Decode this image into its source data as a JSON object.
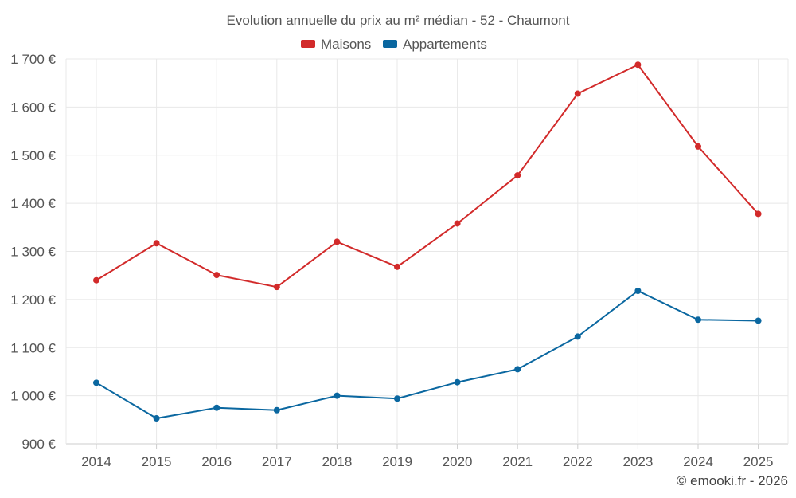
{
  "chart_data": {
    "type": "line",
    "title": "Evolution annuelle du prix au m² médian - 52 - Chaumont",
    "categories": [
      "2014",
      "2015",
      "2016",
      "2017",
      "2018",
      "2019",
      "2020",
      "2021",
      "2022",
      "2023",
      "2024",
      "2025"
    ],
    "series": [
      {
        "name": "Maisons",
        "color": "#d22a2a",
        "values": [
          1240,
          1317,
          1251,
          1226,
          1320,
          1268,
          1358,
          1458,
          1628,
          1688,
          1518,
          1378
        ]
      },
      {
        "name": "Appartements",
        "color": "#0a67a0",
        "values": [
          1027,
          953,
          975,
          970,
          1000,
          994,
          1028,
          1055,
          1123,
          1218,
          1158,
          1156
        ]
      }
    ],
    "ylim": [
      900,
      1700
    ],
    "yticks": [
      900,
      1000,
      1100,
      1200,
      1300,
      1400,
      1500,
      1600,
      1700
    ],
    "ytick_labels": [
      "900 €",
      "1 000 €",
      "1 100 €",
      "1 200 €",
      "1 300 €",
      "1 400 €",
      "1 500 €",
      "1 600 €",
      "1 700 €"
    ],
    "xlabel": "",
    "ylabel": "",
    "legend_position": "top",
    "grid": true
  },
  "credit": "© emooki.fr - 2026"
}
